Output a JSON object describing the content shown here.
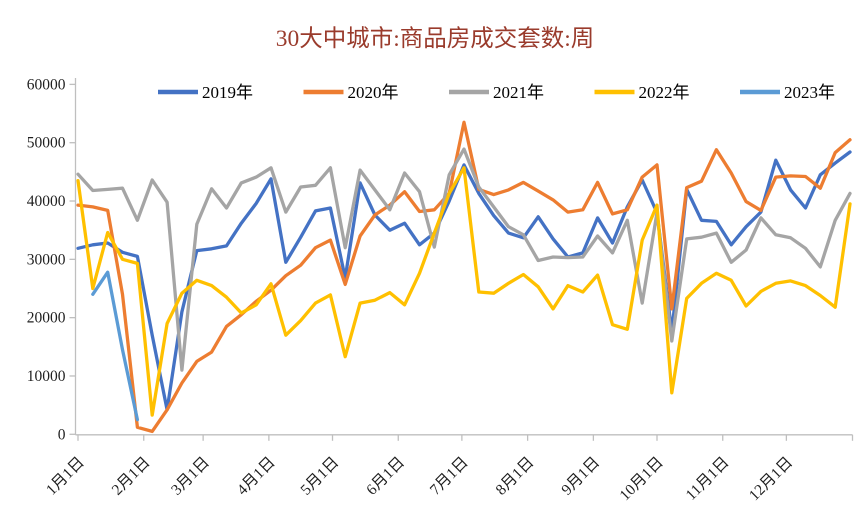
{
  "page": {
    "background": "#ffffff"
  },
  "chart_data": {
    "type": "line",
    "title": "30大中城市:商品房成交套数:周",
    "title_color": "#9A3B2C",
    "legend_position": "top",
    "grid": false,
    "axis_color": "#BFBFBF",
    "label_color": "#1F1F1F",
    "x_unit": "week_of_year",
    "x_range": [
      1,
      53
    ],
    "x_tick_labels": [
      "1月1日",
      "2月1日",
      "3月1日",
      "4月1日",
      "5月1日",
      "6月1日",
      "7月1日",
      "8月1日",
      "9月1日",
      "10月1日",
      "11月1日",
      "12月1日"
    ],
    "x_tick_day_of_year": [
      1,
      32,
      60,
      91,
      121,
      152,
      182,
      213,
      244,
      274,
      305,
      335
    ],
    "ylim": [
      0,
      60000
    ],
    "y_tick_step": 10000,
    "y_tick_labels": [
      "0",
      "10000",
      "20000",
      "30000",
      "40000",
      "50000",
      "60000"
    ],
    "series": [
      {
        "name": "2019年",
        "color": "#4472C4",
        "start_week": 1,
        "values": [
          31900,
          32500,
          32800,
          31200,
          30500,
          17000,
          4200,
          21000,
          31500,
          31800,
          32300,
          36200,
          39600,
          43800,
          29500,
          33800,
          38300,
          38800,
          26800,
          43100,
          37600,
          35000,
          36200,
          32500,
          34500,
          40000,
          46200,
          41300,
          37500,
          34500,
          33700,
          37300,
          33500,
          30400,
          31100,
          37100,
          32800,
          39000,
          43600,
          38000,
          17500,
          42000,
          36700,
          36500,
          32500,
          35600,
          38100,
          47000,
          41900,
          38800,
          44500,
          46500,
          48400
        ]
      },
      {
        "name": "2020年",
        "color": "#ED7D31",
        "start_week": 1,
        "values": [
          39300,
          39000,
          38400,
          24000,
          1200,
          500,
          4200,
          8800,
          12500,
          14100,
          18500,
          20500,
          22800,
          24700,
          27200,
          29000,
          32000,
          33300,
          25700,
          34000,
          37600,
          39300,
          41600,
          38200,
          38500,
          41300,
          53500,
          42000,
          41100,
          41900,
          43200,
          41700,
          40200,
          38100,
          38500,
          43200,
          37800,
          38500,
          44100,
          46200,
          21500,
          42300,
          43400,
          48800,
          44800,
          39900,
          38400,
          44100,
          44300,
          44200,
          42200,
          48300,
          50500
        ]
      },
      {
        "name": "2021年",
        "color": "#A5A5A5",
        "start_week": 1,
        "values": [
          44600,
          41800,
          42000,
          42200,
          36700,
          43600,
          39800,
          11000,
          36000,
          42100,
          38800,
          43100,
          44100,
          45700,
          38100,
          42400,
          42700,
          45700,
          32000,
          45300,
          41900,
          38500,
          44800,
          41600,
          32100,
          44500,
          48900,
          42400,
          39000,
          35600,
          34200,
          29800,
          30400,
          30300,
          30400,
          34000,
          31100,
          36700,
          22500,
          38000,
          16000,
          33500,
          33800,
          34500,
          29500,
          31600,
          37100,
          34200,
          33700,
          31900,
          28700,
          36700,
          41300
        ]
      },
      {
        "name": "2022年",
        "color": "#FFC000",
        "start_week": 1,
        "values": [
          43500,
          25000,
          34600,
          30000,
          29300,
          3300,
          19000,
          24200,
          26400,
          25500,
          23500,
          20800,
          22200,
          25800,
          17000,
          19500,
          22500,
          23900,
          13300,
          22500,
          23000,
          24300,
          22200,
          27600,
          34500,
          41300,
          45700,
          24400,
          24200,
          25900,
          27400,
          25300,
          21500,
          25500,
          24400,
          27300,
          18800,
          18000,
          33300,
          39300,
          7100,
          23300,
          25900,
          27600,
          26400,
          22000,
          24500,
          25900,
          26300,
          25500,
          23800,
          21800,
          39500
        ]
      },
      {
        "name": "2023年",
        "color": "#5B9BD5",
        "start_week": 2,
        "values": [
          24000,
          27800,
          14500,
          2500
        ]
      }
    ]
  }
}
